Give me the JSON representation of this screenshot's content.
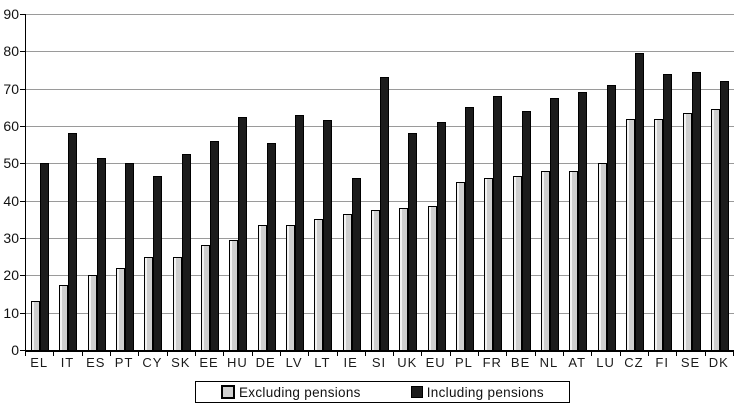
{
  "chart_data": {
    "type": "bar",
    "title": "",
    "xlabel": "",
    "ylabel": "",
    "categories": [
      "EL",
      "IT",
      "ES",
      "PT",
      "CY",
      "SK",
      "EE",
      "HU",
      "DE",
      "LV",
      "LT",
      "IE",
      "SI",
      "UK",
      "EU",
      "PL",
      "FR",
      "BE",
      "NL",
      "AT",
      "LU",
      "CZ",
      "FI",
      "SE",
      "DK"
    ],
    "series": [
      {
        "name": "Excluding pensions",
        "color": "#cfcfcf",
        "values": [
          13,
          17.5,
          20,
          22,
          25,
          25,
          28,
          29.5,
          33.5,
          33.5,
          35,
          36.5,
          37.5,
          38,
          38.5,
          45,
          46,
          46.5,
          48,
          48,
          50,
          62,
          62,
          63.5,
          64.5
        ]
      },
      {
        "name": "Including pensions",
        "color": "#1c1c1c",
        "values": [
          50,
          58,
          51.5,
          50,
          46.5,
          52.5,
          56,
          62.5,
          55.5,
          63,
          61.5,
          46,
          73,
          58,
          61,
          65,
          68,
          64,
          67.5,
          69,
          71,
          79.5,
          74,
          74.5,
          72
        ]
      }
    ],
    "ylim": [
      0,
      90
    ],
    "yticks": [
      0,
      10,
      20,
      30,
      40,
      50,
      60,
      70,
      80,
      90
    ],
    "grid": true,
    "legend_position": "bottom"
  },
  "colors": {
    "background": "#ffffff",
    "gridline": "#9a9a9a",
    "axis": "#000000",
    "bar_excluding": "#cfcfcf",
    "bar_including": "#1c1c1c",
    "text": "#111111"
  }
}
